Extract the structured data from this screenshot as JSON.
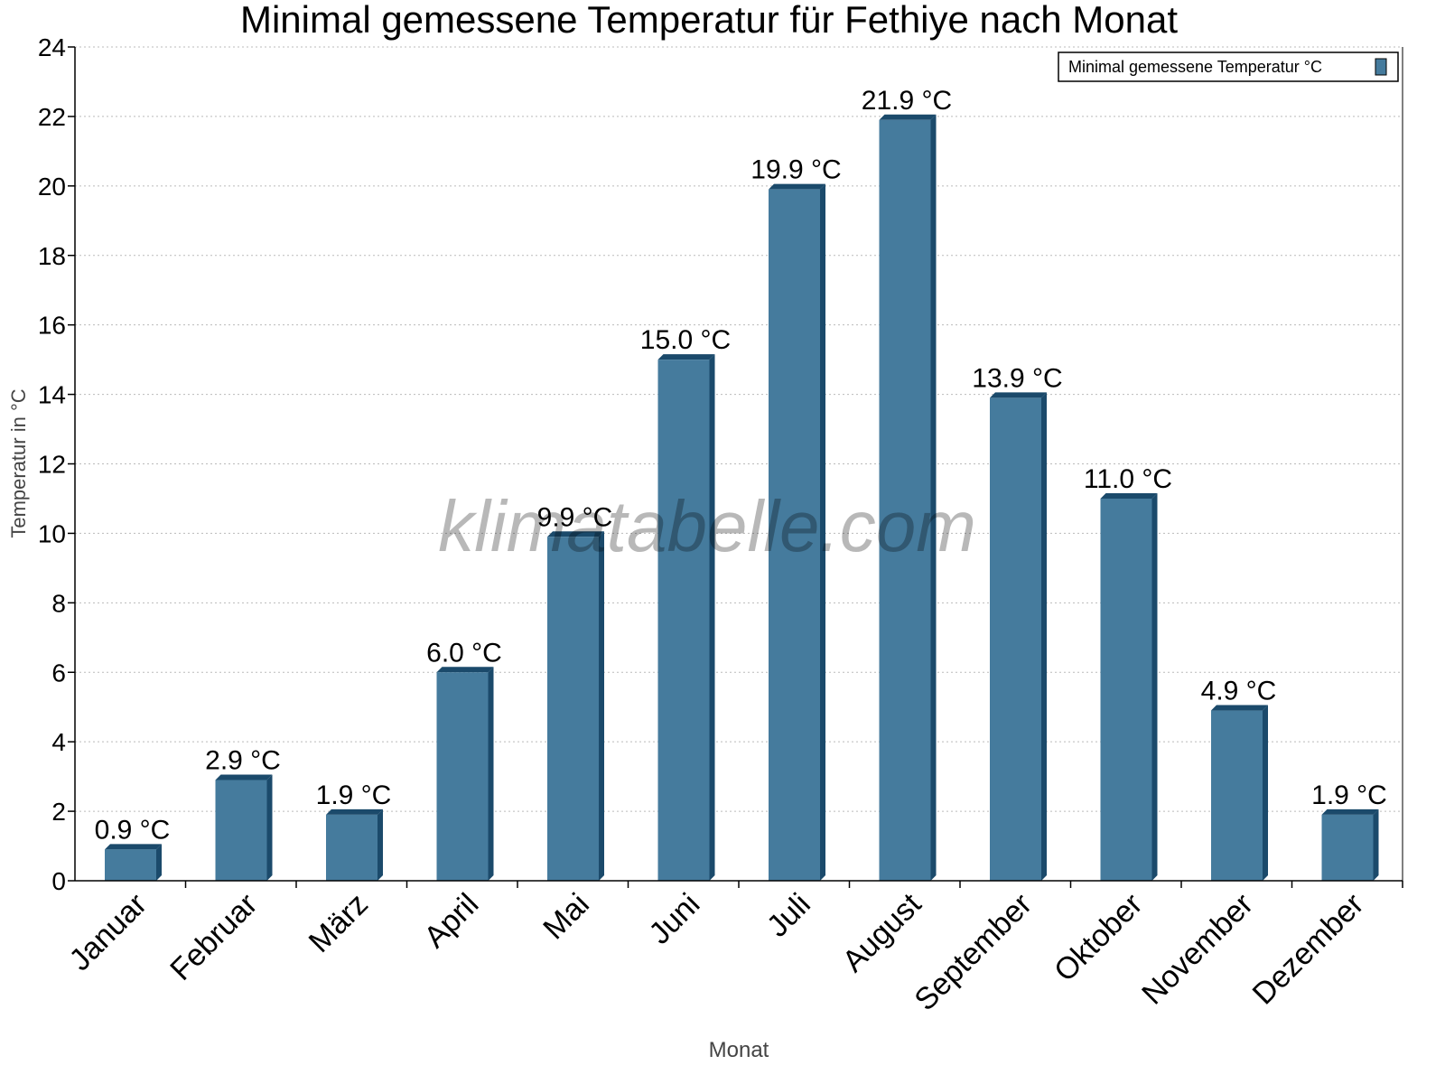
{
  "chart_data": {
    "type": "bar",
    "title": "Minimal gemessene Temperatur für Fethiye nach Monat",
    "xlabel": "Monat",
    "ylabel": "Temperatur in °C",
    "ylim": [
      0,
      24
    ],
    "yticks": [
      "0",
      "2",
      "4",
      "6",
      "8",
      "10",
      "12",
      "14",
      "16",
      "18",
      "20",
      "22",
      "24"
    ],
    "grid": true,
    "legend_position": "top-right",
    "categories": [
      "Januar",
      "Februar",
      "März",
      "April",
      "Mai",
      "Juni",
      "Juli",
      "August",
      "September",
      "Oktober",
      "November",
      "Dezember"
    ],
    "series": [
      {
        "name": "Minimal gemessene Temperatur °C",
        "values": [
          0.9,
          2.9,
          1.9,
          6.0,
          9.9,
          15.0,
          19.9,
          21.9,
          13.9,
          11.0,
          4.9,
          1.9
        ],
        "data_labels": [
          "0.9 °C",
          "2.9 °C",
          "1.9 °C",
          "6.0 °C",
          "9.9 °C",
          "15.0 °C",
          "19.9 °C",
          "21.9 °C",
          "13.9 °C",
          "11.0 °C",
          "4.9 °C",
          "1.9 °C"
        ],
        "color": "#457b9d",
        "side_color": "#1b4a6b"
      }
    ],
    "watermark": "klimatabelle.com"
  }
}
